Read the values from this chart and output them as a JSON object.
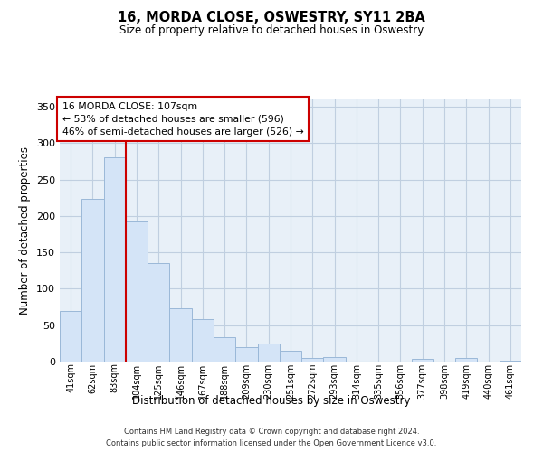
{
  "title": "16, MORDA CLOSE, OSWESTRY, SY11 2BA",
  "subtitle": "Size of property relative to detached houses in Oswestry",
  "xlabel": "Distribution of detached houses by size in Oswestry",
  "ylabel": "Number of detached properties",
  "bar_labels": [
    "41sqm",
    "62sqm",
    "83sqm",
    "104sqm",
    "125sqm",
    "146sqm",
    "167sqm",
    "188sqm",
    "209sqm",
    "230sqm",
    "251sqm",
    "272sqm",
    "293sqm",
    "314sqm",
    "335sqm",
    "356sqm",
    "377sqm",
    "398sqm",
    "419sqm",
    "440sqm",
    "461sqm"
  ],
  "bar_values": [
    70,
    224,
    280,
    193,
    135,
    73,
    58,
    34,
    20,
    25,
    15,
    5,
    6,
    0,
    0,
    0,
    4,
    0,
    5,
    0,
    1
  ],
  "bar_color": "#d4e4f7",
  "bar_edge_color": "#9ab8d8",
  "vline_color": "#cc0000",
  "annotation_title": "16 MORDA CLOSE: 107sqm",
  "annotation_line1": "← 53% of detached houses are smaller (596)",
  "annotation_line2": "46% of semi-detached houses are larger (526) →",
  "annotation_box_color": "#ffffff",
  "annotation_box_edge_color": "#cc0000",
  "ylim": [
    0,
    360
  ],
  "yticks": [
    0,
    50,
    100,
    150,
    200,
    250,
    300,
    350
  ],
  "footnote_line1": "Contains HM Land Registry data © Crown copyright and database right 2024.",
  "footnote_line2": "Contains public sector information licensed under the Open Government Licence v3.0.",
  "plot_bg_color": "#e8f0f8",
  "fig_bg_color": "#ffffff",
  "grid_color": "#c0cfe0"
}
